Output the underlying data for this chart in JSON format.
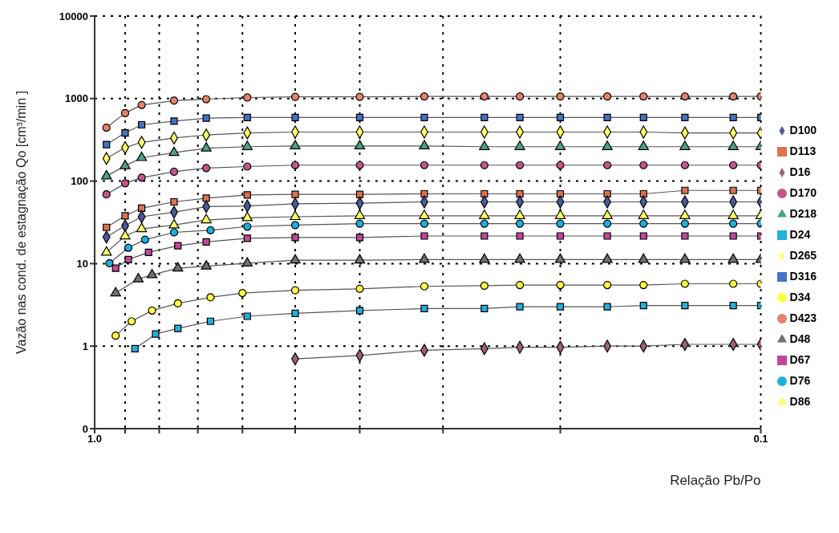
{
  "chart_data": {
    "type": "line",
    "xlabel": "Relação Pb/Po",
    "ylabel": "Vazão nas cond. de estagnação  Qo  [cm³/min ]",
    "x": [
      0.96,
      0.9,
      0.85,
      0.76,
      0.68,
      0.59,
      0.5,
      0.4,
      0.32,
      0.26,
      0.23,
      0.2,
      0.17,
      0.15,
      0.13,
      0.11,
      0.1
    ],
    "series": [
      {
        "name": "D423",
        "color": "#e8826a",
        "marker": "circle",
        "values": [
          444,
          667,
          835,
          944,
          984,
          1030,
          1050,
          1050,
          1060,
          1060,
          1060,
          1060,
          1060,
          1060,
          1060,
          1060,
          1060
        ]
      },
      {
        "name": "D316",
        "color": "#4472c4",
        "marker": "square",
        "values": [
          277,
          384,
          481,
          533,
          579,
          591,
          591,
          591,
          591,
          591,
          591,
          591,
          591,
          591,
          591,
          591,
          591
        ]
      },
      {
        "name": "D265",
        "color": "#ffff66",
        "marker": "diamond",
        "values": [
          188,
          255,
          295,
          333,
          362,
          384,
          393,
          393,
          393,
          393,
          393,
          393,
          393,
          393,
          384,
          384,
          384
        ]
      },
      {
        "name": "D218",
        "color": "#4aa38a",
        "marker": "triangle",
        "values": [
          115,
          153,
          192,
          221,
          250,
          261,
          266,
          266,
          266,
          261,
          261,
          261,
          261,
          261,
          261,
          261,
          261
        ]
      },
      {
        "name": "D170",
        "color": "#c8558a",
        "marker": "circle",
        "values": [
          69,
          94,
          110,
          130,
          144,
          150,
          156,
          156,
          156,
          156,
          156,
          156,
          156,
          156,
          156,
          156,
          156
        ]
      },
      {
        "name": "D113",
        "color": "#e07050",
        "marker": "square",
        "values": [
          27.5,
          38,
          47,
          56,
          62,
          68,
          69,
          69,
          70,
          70,
          70,
          70,
          70,
          70,
          77,
          77,
          77
        ]
      },
      {
        "name": "D100",
        "color": "#4a5a9a",
        "marker": "diamond",
        "values": [
          21,
          28.7,
          37,
          42,
          49,
          50,
          53,
          54,
          56,
          56,
          56,
          56,
          56,
          56,
          56,
          56,
          56
        ]
      },
      {
        "name": "D86",
        "color": "#ffff66",
        "marker": "triangle",
        "values": [
          13.7,
          21.6,
          26.4,
          29.3,
          33.8,
          35.9,
          37,
          38,
          38,
          38,
          38,
          38,
          38,
          38,
          38,
          38,
          38
        ]
      },
      {
        "name": "D76",
        "color": "#1ab0e0",
        "marker": "circle",
        "x": [
          0.95,
          0.89,
          0.84,
          0.76,
          0.67,
          0.59,
          0.5,
          0.4,
          0.32,
          0.26,
          0.23,
          0.2,
          0.17,
          0.15,
          0.13,
          0.11,
          0.1
        ],
        "values": [
          10.1,
          15.6,
          19.5,
          23.9,
          25.4,
          28.1,
          29.3,
          30.5,
          30.5,
          30.5,
          30.5,
          30.5,
          30.5,
          30.5,
          30.5,
          30.5,
          30.5
        ]
      },
      {
        "name": "D67",
        "color": "#c04898",
        "marker": "square",
        "x": [
          0.93,
          0.89,
          0.83,
          0.75,
          0.68,
          0.59,
          0.5,
          0.4,
          0.32,
          0.26,
          0.23,
          0.2,
          0.17,
          0.15,
          0.13,
          0.11,
          0.1
        ],
        "values": [
          8.8,
          11.2,
          13.7,
          16.5,
          18.3,
          20.3,
          20.7,
          20.7,
          21.6,
          21.6,
          21.6,
          21.6,
          21.6,
          21.6,
          21.6,
          21.6,
          21.6
        ]
      },
      {
        "name": "D48",
        "color": "#707070",
        "marker": "triangle",
        "x": [
          0.93,
          0.86,
          0.82,
          0.75,
          0.68,
          0.59,
          0.5,
          0.4,
          0.32,
          0.26,
          0.23,
          0.2,
          0.17,
          0.15,
          0.13,
          0.11,
          0.1
        ],
        "values": [
          4.4,
          6.5,
          7.3,
          8.8,
          9.3,
          10.1,
          11,
          11,
          11.2,
          11.2,
          11.2,
          11.2,
          11.2,
          11.2,
          11.2,
          11.2,
          11.2
        ]
      },
      {
        "name": "D34",
        "color": "#ffff44",
        "marker": "circle",
        "x": [
          0.93,
          0.88,
          0.82,
          0.75,
          0.67,
          0.6,
          0.5,
          0.4,
          0.32,
          0.26,
          0.23,
          0.2,
          0.17,
          0.15,
          0.13,
          0.11,
          0.1
        ],
        "values": [
          1.34,
          2,
          2.7,
          3.3,
          3.9,
          4.4,
          4.75,
          4.95,
          5.3,
          5.4,
          5.5,
          5.5,
          5.5,
          5.5,
          5.7,
          5.7,
          5.7
        ]
      },
      {
        "name": "D24",
        "color": "#22b0d8",
        "marker": "square",
        "x": [
          0.87,
          0.81,
          0.75,
          0.67,
          0.59,
          0.5,
          0.4,
          0.32,
          0.26,
          0.23,
          0.2,
          0.17,
          0.15,
          0.13,
          0.11,
          0.1
        ],
        "values": [
          0.93,
          1.4,
          1.64,
          2,
          2.3,
          2.5,
          2.7,
          2.85,
          2.85,
          3,
          3,
          3,
          3.1,
          3.1,
          3.1,
          3.1
        ]
      },
      {
        "name": "D16",
        "color": "#a06070",
        "marker": "diamond",
        "x": [
          0.5,
          0.4,
          0.32,
          0.26,
          0.23,
          0.2,
          0.17,
          0.15,
          0.13,
          0.11,
          0.1
        ],
        "values": [
          0.7,
          0.77,
          0.89,
          0.93,
          0.97,
          0.97,
          1,
          1,
          1.05,
          1.05,
          1.05
        ]
      }
    ],
    "log": "xy",
    "xlim": [
      1,
      0.1
    ],
    "xticks": [
      {
        "value": 1,
        "label": "1.0"
      },
      {
        "value": 0.9,
        "label": null
      },
      {
        "value": 0.8,
        "label": null
      },
      {
        "value": 0.7,
        "label": null
      },
      {
        "value": 0.6,
        "label": null
      },
      {
        "value": 0.5,
        "label": null
      },
      {
        "value": 0.4,
        "label": null
      },
      {
        "value": 0.3,
        "label": null
      },
      {
        "value": 0.2,
        "label": null
      },
      {
        "value": 0.1,
        "label": "0.1"
      }
    ],
    "ylim": [
      0.1,
      10000
    ],
    "yticks": [
      {
        "value": 0.1,
        "label": "0"
      },
      1,
      10,
      100,
      1000,
      10000
    ],
    "grid": true,
    "legend": "right",
    "line_style": "solid"
  }
}
